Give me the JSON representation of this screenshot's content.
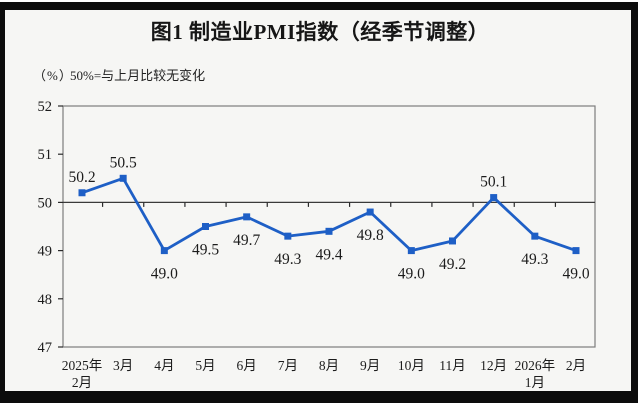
{
  "window": {
    "frame_color": "#0c0c0c",
    "content_bg": "#f6f6f4"
  },
  "header": {
    "title": "图1  制造业PMI指数（经季节调整）",
    "unit_label": "（%）",
    "note": "50%=与上月比较无变化"
  },
  "chart_data": {
    "type": "line",
    "title": "图1 制造业PMI指数（经季节调整）",
    "categories": [
      "2025年2月",
      "3月",
      "4月",
      "5月",
      "6月",
      "7月",
      "8月",
      "9月",
      "10月",
      "11月",
      "12月",
      "2026年1月",
      "2月"
    ],
    "category_lines": [
      [
        "2025年",
        "2月"
      ],
      [
        "3月"
      ],
      [
        "4月"
      ],
      [
        "5月"
      ],
      [
        "6月"
      ],
      [
        "7月"
      ],
      [
        "8月"
      ],
      [
        "9月"
      ],
      [
        "10月"
      ],
      [
        "11月"
      ],
      [
        "12月"
      ],
      [
        "2026年",
        "1月"
      ],
      [
        "2月"
      ]
    ],
    "values": [
      50.2,
      50.5,
      49.0,
      49.5,
      49.7,
      49.3,
      49.4,
      49.8,
      49.0,
      49.2,
      50.1,
      49.3,
      49.0
    ],
    "value_labels": [
      "50.2",
      "50.5",
      "49.0",
      "49.5",
      "49.7",
      "49.3",
      "49.4",
      "49.8",
      "49.0",
      "49.2",
      "50.1",
      "49.3",
      "49.0"
    ],
    "label_side": [
      "above",
      "above",
      "below",
      "below",
      "below",
      "below",
      "below",
      "below",
      "below",
      "below",
      "above",
      "below",
      "below"
    ],
    "xlabel": "",
    "ylabel": "(%)",
    "ylim": [
      47,
      52
    ],
    "yticks": [
      47,
      48,
      49,
      50,
      51,
      52
    ],
    "reference_line": 50,
    "series_name": "制造业PMI指数",
    "series_color": "#1e5fc6",
    "axis_color": "#7d7d7d",
    "reference_line_color": "#3a3a3a",
    "grid": false,
    "legend": "none"
  }
}
